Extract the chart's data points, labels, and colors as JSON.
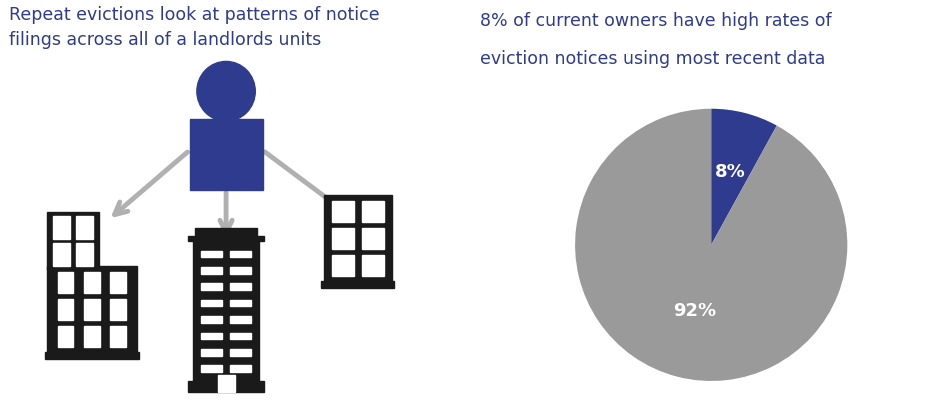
{
  "left_title_line1": "Repeat evictions look at patterns of notice",
  "left_title_line2": "filings across all of a landlords units",
  "right_title_line1": "8% of current owners have high rates of",
  "right_title_line2": "eviction notices using most recent data",
  "title_color": "#2E3B8E",
  "title_fontsize": 12.5,
  "pie_values": [
    8,
    92
  ],
  "pie_labels": [
    "8%",
    "92%"
  ],
  "pie_colors": [
    "#2E3B8E",
    "#9A9A9A"
  ],
  "pie_label_color": "white",
  "pie_label_fontsize": 13,
  "figure_bg": "#ffffff",
  "person_head_color": "#2E3B8E",
  "person_body_color": "#2E3B8E",
  "arrow_color": "#b0b0b0",
  "building_color": "#1a1a1a"
}
